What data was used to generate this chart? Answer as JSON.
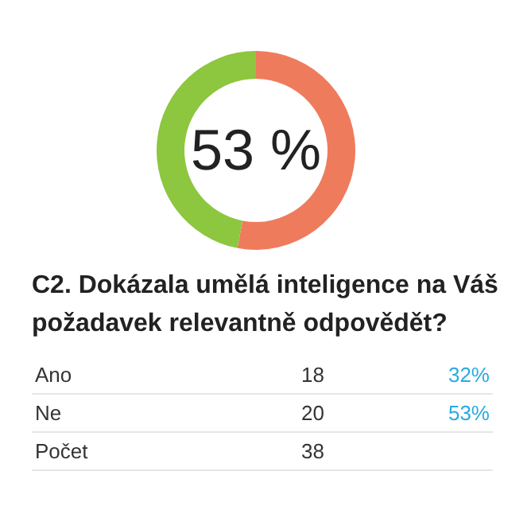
{
  "chart_data": {
    "type": "donut",
    "title": "C2. Dokázala umělá inteligence na Váš požadavek relevantně odpovědět?",
    "categories": [
      null,
      null
    ],
    "values": [
      47,
      53
    ],
    "colors": [
      "#8dc63f",
      "#ef7b5d"
    ],
    "annotations": [
      "53 %",
      "Ano",
      "18",
      "32%",
      "Ne",
      "20",
      "53%",
      "Počet",
      "38"
    ],
    "legend": false
  }
}
